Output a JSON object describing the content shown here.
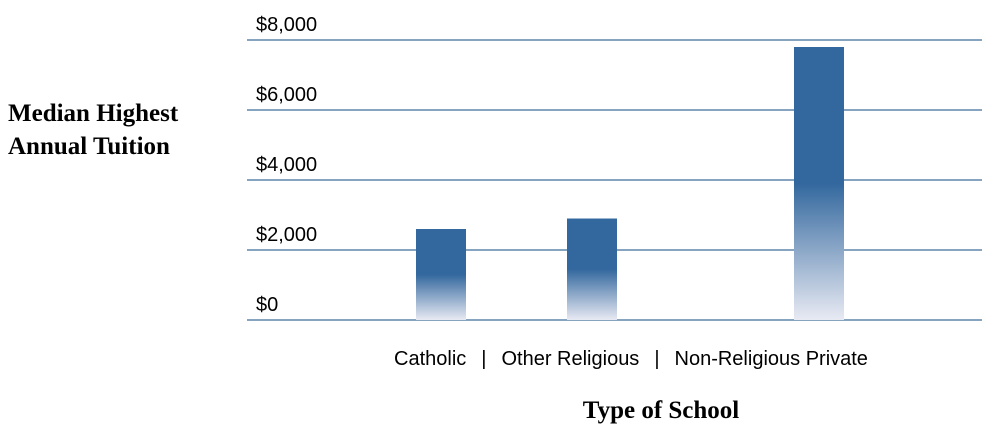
{
  "chart_data": {
    "type": "bar",
    "ylabel": [
      "Median Highest",
      "Annual Tuition"
    ],
    "xlabel": "Type of School",
    "categories": [
      "Catholic",
      "Other Religious",
      "Non-Religious Private"
    ],
    "category_separator": "|",
    "values": [
      2600,
      2900,
      7800
    ],
    "ylim": [
      0,
      8000
    ],
    "yticks": [
      0,
      2000,
      4000,
      6000,
      8000
    ],
    "ytick_labels": [
      "$0",
      "$2,000",
      "$4,000",
      "$6,000",
      "$8,000"
    ],
    "grid": true,
    "legend": "none",
    "colors": {
      "bar": "#33689e",
      "bar_fade": "#e8eaf3",
      "gridline": "#3f6c9b"
    }
  }
}
